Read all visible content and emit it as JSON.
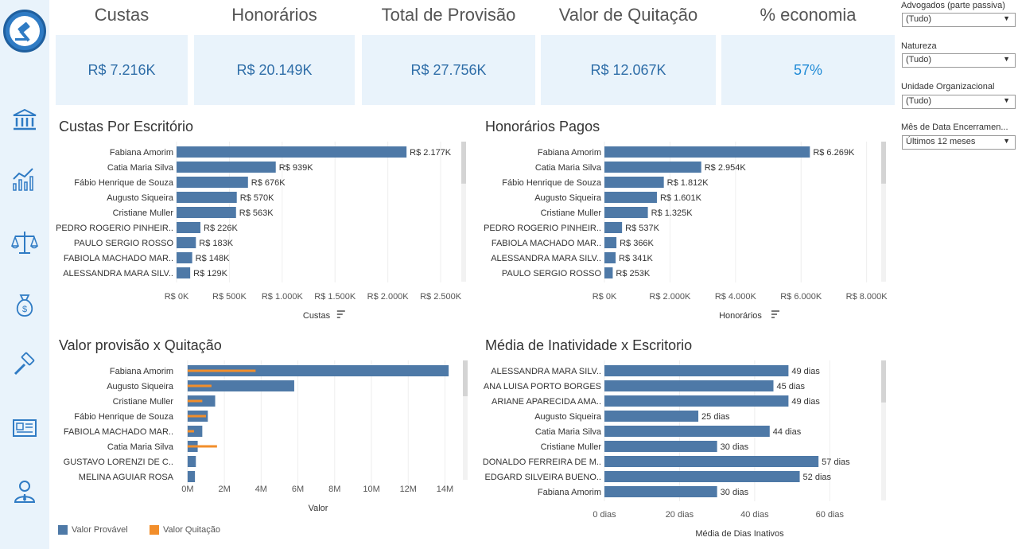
{
  "colors": {
    "bar": "#4e79a7",
    "quitacao": "#f28e2b",
    "panel": "#e9f3fb",
    "accent": "#1f8ad6"
  },
  "sidebar": {
    "icons": [
      "bank-icon",
      "chart-line-icon",
      "scales-icon",
      "money-bag-icon",
      "gavel-icon",
      "newspaper-icon",
      "user-tie-icon"
    ]
  },
  "kpis": [
    {
      "title": "Custas",
      "value": "R$ 7.216K"
    },
    {
      "title": "Honorários",
      "value": "R$ 20.149K"
    },
    {
      "title": "Total de Provisão",
      "value": "R$ 27.756K"
    },
    {
      "title": "Valor de Quitação",
      "value": "R$ 12.067K"
    },
    {
      "title": "% economia",
      "value": "57%"
    }
  ],
  "filters": [
    {
      "label": "Advogados (parte passiva)",
      "value": "(Tudo)"
    },
    {
      "label": "Natureza",
      "value": "(Tudo)"
    },
    {
      "label": "Unidade Organizacional",
      "value": "(Tudo)"
    },
    {
      "label": "Mês de Data Encerramen...",
      "value": "Últimos 12 meses"
    }
  ],
  "charts_meta": {
    "custas": {
      "title": "Custas Por Escritório",
      "axis_label": "Custas",
      "sort_icon": "sort-icon"
    },
    "honorarios": {
      "title": "Honorários Pagos",
      "axis_label": "Honorários",
      "sort_icon": "sort-icon"
    },
    "provisao": {
      "title": "Valor provisão x Quitação",
      "axis_label": "Valor"
    },
    "inatividade": {
      "title": "Média de Inatividade x Escritorio",
      "axis_label": "Média de Dias Inativos"
    }
  },
  "legend": {
    "provavel": "Valor Provável",
    "quitacao": "Valor Quitação"
  },
  "chart_data": [
    {
      "type": "bar",
      "orientation": "horizontal",
      "title": "Custas Por Escritório",
      "xlabel": "Custas",
      "categories": [
        "Fabiana Amorim",
        "Catia Maria Silva",
        "Fábio Henrique de Souza",
        "Augusto Siqueira",
        "Cristiane Muller",
        "PEDRO ROGERIO PINHEIR..",
        "PAULO SERGIO ROSSO",
        "FABIOLA MACHADO MAR..",
        "ALESSANDRA MARA SILV.."
      ],
      "values": [
        2177,
        939,
        676,
        570,
        563,
        226,
        183,
        148,
        129
      ],
      "labels": [
        "R$ 2.177K",
        "R$ 939K",
        "R$ 676K",
        "R$ 570K",
        "R$ 563K",
        "R$ 226K",
        "R$ 183K",
        "R$ 148K",
        "R$ 129K"
      ],
      "xticks": [
        0,
        500,
        1000,
        1500,
        2000,
        2500
      ],
      "xtick_labels": [
        "R$ 0K",
        "R$ 500K",
        "R$ 1.000K",
        "R$ 1.500K",
        "R$ 2.000K",
        "R$ 2.500K"
      ],
      "xlim": [
        0,
        2650
      ]
    },
    {
      "type": "bar",
      "orientation": "horizontal",
      "title": "Honorários Pagos",
      "xlabel": "Honorários",
      "categories": [
        "Fabiana Amorim",
        "Catia Maria Silva",
        "Fábio Henrique de Souza",
        "Augusto Siqueira",
        "Cristiane Muller",
        "PEDRO ROGERIO PINHEIR..",
        "FABIOLA MACHADO MAR..",
        "ALESSANDRA MARA SILV..",
        "PAULO SERGIO ROSSO"
      ],
      "values": [
        6269,
        2954,
        1812,
        1601,
        1325,
        537,
        366,
        341,
        253
      ],
      "labels": [
        "R$ 6.269K",
        "R$ 2.954K",
        "R$ 1.812K",
        "R$ 1.601K",
        "R$ 1.325K",
        "R$ 537K",
        "R$ 366K",
        "R$ 341K",
        "R$ 253K"
      ],
      "xticks": [
        0,
        2000,
        4000,
        6000,
        8000
      ],
      "xtick_labels": [
        "R$ 0K",
        "R$ 2.000K",
        "R$ 4.000K",
        "R$ 6.000K",
        "R$ 8.000K"
      ],
      "xlim": [
        0,
        8300
      ]
    },
    {
      "type": "bar",
      "orientation": "horizontal",
      "title": "Valor provisão x Quitação",
      "xlabel": "Valor",
      "categories": [
        "Fabiana Amorim",
        "Augusto Siqueira",
        "Cristiane Muller",
        "Fábio Henrique de Souza",
        "FABIOLA MACHADO MAR..",
        "Catia Maria Silva",
        "GUSTAVO LORENZI DE C..",
        "MELINA AGUIAR ROSA"
      ],
      "series": [
        {
          "name": "Valor Provável",
          "values": [
            14.2,
            5.8,
            1.5,
            1.1,
            0.8,
            0.55,
            0.45,
            0.4
          ]
        },
        {
          "name": "Valor Quitação",
          "values": [
            3.7,
            1.3,
            0.8,
            1.0,
            0.35,
            1.6,
            0,
            0
          ]
        }
      ],
      "xticks": [
        0,
        2,
        4,
        6,
        8,
        10,
        12,
        14
      ],
      "xtick_labels": [
        "0M",
        "2M",
        "4M",
        "6M",
        "8M",
        "10M",
        "12M",
        "14M"
      ],
      "xlim": [
        -0.6,
        14.8
      ]
    },
    {
      "type": "bar",
      "orientation": "horizontal",
      "title": "Média de Inatividade x Escritorio",
      "xlabel": "Média de Dias Inativos",
      "categories": [
        "ALESSANDRA MARA SILV..",
        "ANA LUISA PORTO BORGES",
        "ARIANE APARECIDA AMA..",
        "Augusto Siqueira",
        "Catia Maria Silva",
        "Cristiane Muller",
        "DONALDO FERREIRA DE M..",
        "EDGARD SILVEIRA BUENO..",
        "Fabiana Amorim"
      ],
      "values": [
        49,
        45,
        49,
        25,
        44,
        30,
        57,
        52,
        30
      ],
      "labels": [
        "49 dias",
        "45 dias",
        "49 dias",
        "25 dias",
        "44 dias",
        "30 dias",
        "57 dias",
        "52 dias",
        "30 dias"
      ],
      "xticks": [
        0,
        20,
        40,
        60
      ],
      "xtick_labels": [
        "0 dias",
        "20 dias",
        "40 dias",
        "60 dias"
      ],
      "xlim": [
        0,
        72
      ]
    }
  ]
}
